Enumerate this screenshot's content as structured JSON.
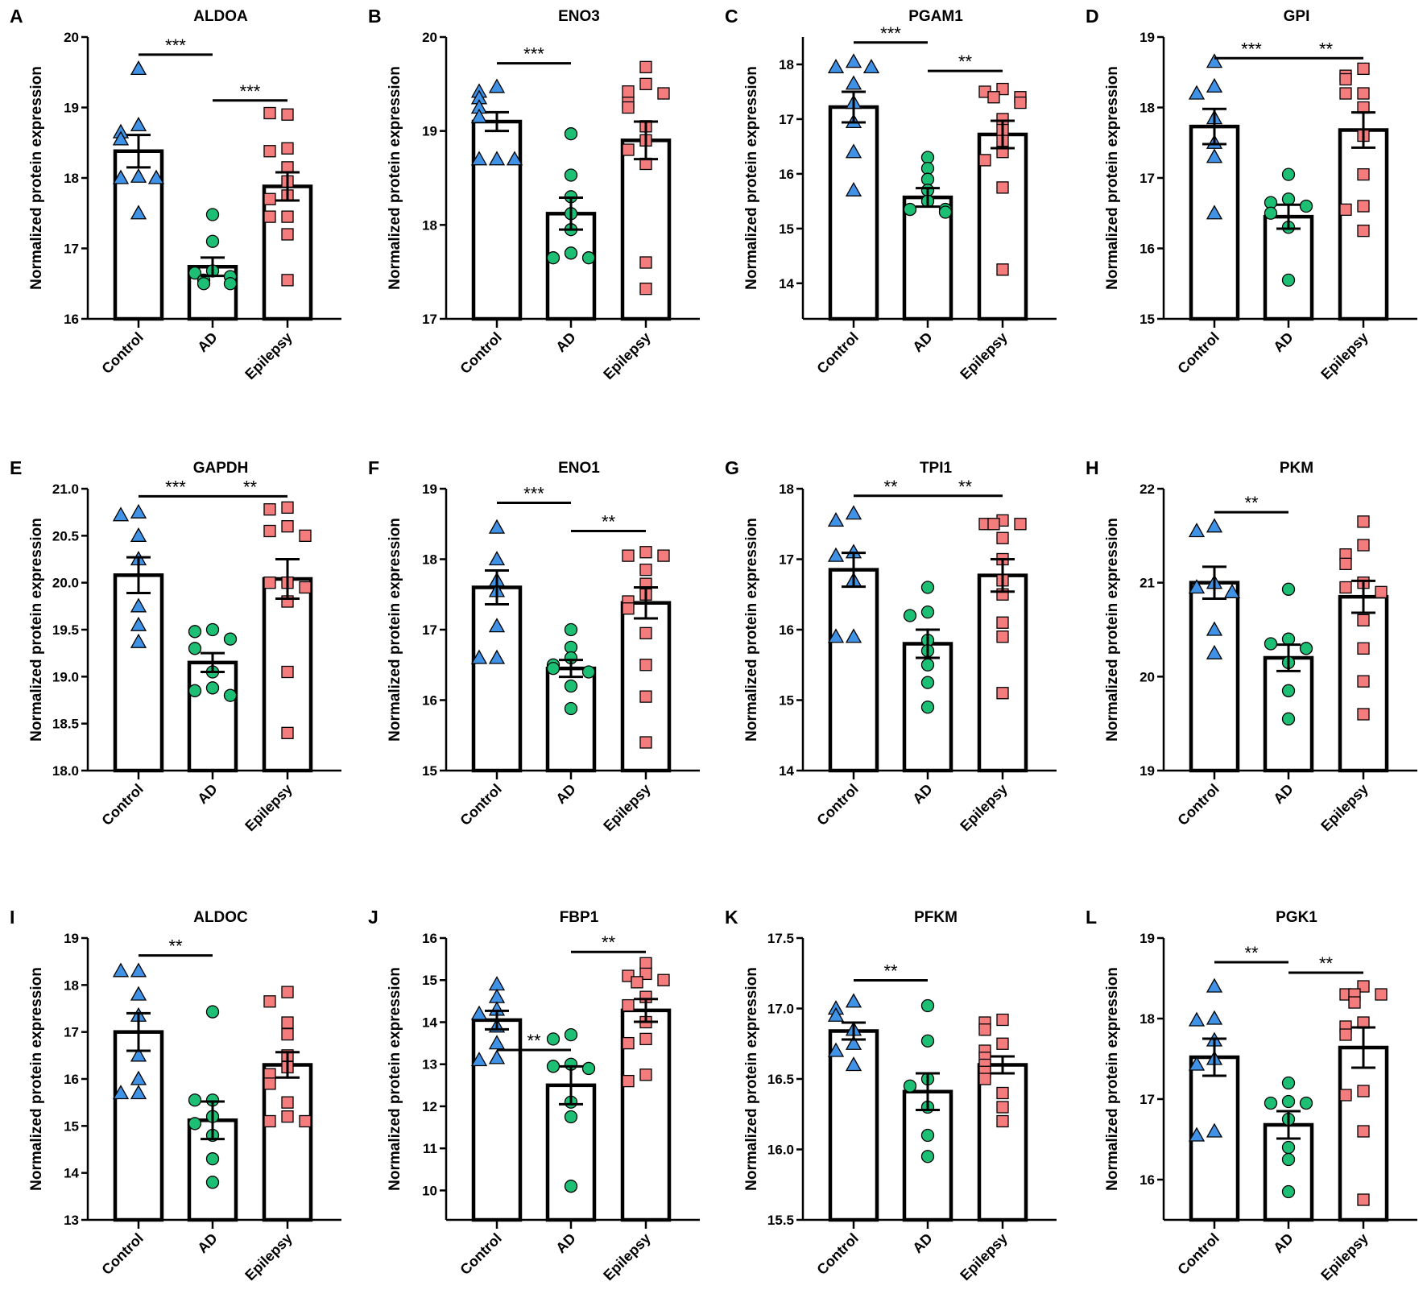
{
  "chart_data": [
    {
      "type": "bar",
      "letter": "A",
      "title": "ALDOA",
      "ylabel": "Normalized protein expression",
      "categories": [
        "Control",
        "AD",
        "Epilepsy"
      ],
      "ylim": [
        16,
        20
      ],
      "tick_labels": [
        "16",
        "17",
        "18",
        "19",
        "20"
      ],
      "groups": [
        {
          "mean": 18.38,
          "sem": 0.23,
          "points": [
            19.55,
            18.75,
            18.65,
            18.55,
            18.02,
            18.0,
            18.0,
            17.5
          ]
        },
        {
          "mean": 16.74,
          "sem": 0.13,
          "points": [
            17.48,
            17.1,
            16.68,
            16.65,
            16.6,
            16.55,
            16.5,
            16.5
          ]
        },
        {
          "mean": 17.88,
          "sem": 0.2,
          "points": [
            18.9,
            18.92,
            18.42,
            18.38,
            18.15,
            17.95,
            17.75,
            17.7,
            17.45,
            17.45,
            17.2,
            16.55
          ]
        }
      ],
      "significance": [
        {
          "from": 0,
          "to": 1,
          "label": "***",
          "y": 19.75
        },
        {
          "from": 1,
          "to": 2,
          "label": "***",
          "y": 19.1
        }
      ]
    },
    {
      "type": "bar",
      "letter": "B",
      "title": "ENO3",
      "ylabel": "Normalized protein expression",
      "categories": [
        "Control",
        "AD",
        "Epilepsy"
      ],
      "ylim": [
        17,
        20
      ],
      "tick_labels": [
        "17",
        "18",
        "19",
        "20"
      ],
      "groups": [
        {
          "mean": 19.1,
          "sem": 0.1,
          "points": [
            19.47,
            19.42,
            19.35,
            19.25,
            19.15,
            18.7,
            18.7,
            18.7
          ]
        },
        {
          "mean": 18.12,
          "sem": 0.17,
          "points": [
            18.97,
            18.53,
            18.3,
            18.12,
            17.95,
            17.7,
            17.65,
            17.65
          ]
        },
        {
          "mean": 18.9,
          "sem": 0.2,
          "points": [
            19.68,
            19.5,
            19.42,
            19.4,
            19.3,
            19.25,
            19.05,
            18.9,
            18.8,
            18.65,
            17.6,
            17.32
          ]
        }
      ],
      "significance": [
        {
          "from": 0,
          "to": 1,
          "label": "***",
          "y": 19.72
        }
      ]
    },
    {
      "type": "bar",
      "letter": "C",
      "title": "PGAM1",
      "ylabel": "Normalized protein expression",
      "categories": [
        "Control",
        "AD",
        "Epilepsy"
      ],
      "ylim": [
        13.35,
        18.5
      ],
      "tick_labels": [
        "14",
        "15",
        "16",
        "17",
        "18"
      ],
      "groups": [
        {
          "mean": 17.22,
          "sem": 0.28,
          "points": [
            18.05,
            17.95,
            17.95,
            17.65,
            17.3,
            16.95,
            16.4,
            15.7
          ]
        },
        {
          "mean": 15.57,
          "sem": 0.17,
          "points": [
            16.3,
            16.1,
            15.9,
            15.7,
            15.5,
            15.35,
            15.35,
            15.3
          ]
        },
        {
          "mean": 16.72,
          "sem": 0.25,
          "points": [
            17.55,
            17.5,
            17.4,
            17.4,
            17.3,
            17.0,
            16.8,
            16.6,
            16.4,
            16.25,
            15.75,
            14.25
          ]
        }
      ],
      "significance": [
        {
          "from": 0,
          "to": 1,
          "label": "***",
          "y": 18.4
        },
        {
          "from": 1,
          "to": 2,
          "label": "**",
          "y": 17.88
        }
      ]
    },
    {
      "type": "bar",
      "letter": "D",
      "title": "GPI",
      "ylabel": "Normalized protein expression",
      "categories": [
        "Control",
        "AD",
        "Epilepsy"
      ],
      "ylim": [
        15,
        19
      ],
      "tick_labels": [
        "15",
        "16",
        "17",
        "18",
        "19"
      ],
      "groups": [
        {
          "mean": 17.73,
          "sem": 0.25,
          "points": [
            18.65,
            18.3,
            18.2,
            17.85,
            17.5,
            17.3,
            16.5
          ]
        },
        {
          "mean": 16.45,
          "sem": 0.17,
          "points": [
            17.05,
            16.7,
            16.65,
            16.6,
            16.5,
            16.3,
            15.55
          ]
        },
        {
          "mean": 17.68,
          "sem": 0.25,
          "points": [
            18.55,
            18.45,
            18.4,
            18.2,
            18.2,
            18.0,
            17.6,
            17.05,
            16.6,
            16.55,
            16.25
          ]
        }
      ],
      "significance": [
        {
          "from": 0,
          "to": 1,
          "label": "***",
          "y": 18.7
        },
        {
          "from": 1,
          "to": 2,
          "label": "**",
          "y": 18.7
        }
      ]
    },
    {
      "type": "bar",
      "letter": "E",
      "title": "GAPDH",
      "ylabel": "Normalized protein expression",
      "categories": [
        "Control",
        "AD",
        "Epilepsy"
      ],
      "ylim": [
        18,
        21
      ],
      "tick_labels": [
        "18.0",
        "18.5",
        "19.0",
        "19.5",
        "20.0",
        "20.5",
        "21.0"
      ],
      "groups": [
        {
          "mean": 20.08,
          "sem": 0.19,
          "points": [
            20.75,
            20.72,
            20.5,
            20.25,
            19.75,
            19.55,
            19.37
          ]
        },
        {
          "mean": 19.15,
          "sem": 0.1,
          "points": [
            19.5,
            19.48,
            19.4,
            19.3,
            19.05,
            18.88,
            18.85,
            18.8
          ]
        },
        {
          "mean": 20.04,
          "sem": 0.21,
          "points": [
            20.8,
            20.78,
            20.6,
            20.55,
            20.5,
            20.0,
            20.0,
            19.95,
            19.8,
            19.05,
            18.4
          ]
        }
      ],
      "significance": [
        {
          "from": 0,
          "to": 1,
          "label": "***",
          "y": 20.92
        },
        {
          "from": 1,
          "to": 2,
          "label": "**",
          "y": 20.92
        }
      ]
    },
    {
      "type": "bar",
      "letter": "F",
      "title": "ENO1",
      "ylabel": "Normalized protein expression",
      "categories": [
        "Control",
        "AD",
        "Epilepsy"
      ],
      "ylim": [
        15,
        19
      ],
      "tick_labels": [
        "15",
        "16",
        "17",
        "18",
        "19"
      ],
      "groups": [
        {
          "mean": 17.6,
          "sem": 0.24,
          "points": [
            18.45,
            18.0,
            17.7,
            17.55,
            17.05,
            16.6,
            16.6
          ]
        },
        {
          "mean": 16.45,
          "sem": 0.12,
          "points": [
            17.0,
            16.75,
            16.6,
            16.5,
            16.45,
            16.4,
            16.2,
            15.88
          ]
        },
        {
          "mean": 17.38,
          "sem": 0.22,
          "points": [
            18.1,
            18.05,
            18.05,
            17.85,
            17.65,
            17.5,
            17.4,
            17.3,
            16.95,
            16.5,
            16.05,
            15.4
          ]
        }
      ],
      "significance": [
        {
          "from": 0,
          "to": 1,
          "label": "***",
          "y": 18.8
        },
        {
          "from": 1,
          "to": 2,
          "label": "**",
          "y": 18.4
        }
      ]
    },
    {
      "type": "bar",
      "letter": "G",
      "title": "TPI1",
      "ylabel": "Normalized protein expression",
      "categories": [
        "Control",
        "AD",
        "Epilepsy"
      ],
      "ylim": [
        14,
        18
      ],
      "tick_labels": [
        "14",
        "15",
        "16",
        "17",
        "18"
      ],
      "groups": [
        {
          "mean": 16.85,
          "sem": 0.24,
          "points": [
            17.65,
            17.55,
            17.1,
            17.05,
            16.7,
            15.9,
            15.9
          ]
        },
        {
          "mean": 15.8,
          "sem": 0.2,
          "points": [
            16.6,
            16.25,
            16.2,
            15.85,
            15.7,
            15.5,
            15.25,
            14.9
          ]
        },
        {
          "mean": 16.77,
          "sem": 0.23,
          "points": [
            17.55,
            17.5,
            17.5,
            17.5,
            17.3,
            17.0,
            16.7,
            16.5,
            16.1,
            15.9,
            15.1
          ]
        }
      ],
      "significance": [
        {
          "from": 0,
          "to": 1,
          "label": "**",
          "y": 17.9
        },
        {
          "from": 1,
          "to": 2,
          "label": "**",
          "y": 17.9
        }
      ]
    },
    {
      "type": "bar",
      "letter": "H",
      "title": "PKM",
      "ylabel": "Normalized protein expression",
      "categories": [
        "Control",
        "AD",
        "Epilepsy"
      ],
      "ylim": [
        19,
        22
      ],
      "tick_labels": [
        "19",
        "20",
        "21",
        "22"
      ],
      "groups": [
        {
          "mean": 21.0,
          "sem": 0.17,
          "points": [
            21.6,
            21.55,
            21.0,
            20.95,
            20.9,
            20.5,
            20.25
          ]
        },
        {
          "mean": 20.2,
          "sem": 0.14,
          "points": [
            20.93,
            20.4,
            20.35,
            20.3,
            20.15,
            19.85,
            19.55
          ]
        },
        {
          "mean": 20.85,
          "sem": 0.17,
          "points": [
            21.65,
            21.4,
            21.3,
            21.2,
            21.0,
            20.95,
            20.9,
            20.6,
            20.3,
            19.95,
            19.6
          ]
        }
      ],
      "significance": [
        {
          "from": 0,
          "to": 1,
          "label": "**",
          "y": 21.75
        }
      ]
    },
    {
      "type": "bar",
      "letter": "I",
      "title": "ALDOC",
      "ylabel": "Normalized protein expression",
      "categories": [
        "Control",
        "AD",
        "Epilepsy"
      ],
      "ylim": [
        13,
        19
      ],
      "tick_labels": [
        "13",
        "14",
        "15",
        "16",
        "17",
        "18",
        "19"
      ],
      "groups": [
        {
          "mean": 17.0,
          "sem": 0.4,
          "points": [
            18.3,
            18.3,
            17.8,
            17.35,
            16.5,
            16.0,
            15.7,
            15.7
          ]
        },
        {
          "mean": 15.12,
          "sem": 0.4,
          "points": [
            17.43,
            15.55,
            15.55,
            15.2,
            15.05,
            14.8,
            14.3,
            13.8
          ]
        },
        {
          "mean": 16.3,
          "sem": 0.27,
          "points": [
            17.85,
            17.65,
            17.2,
            16.95,
            16.5,
            16.25,
            16.1,
            15.9,
            15.5,
            15.2,
            15.1,
            15.1
          ]
        }
      ],
      "significance": [
        {
          "from": 0,
          "to": 1,
          "label": "**",
          "y": 18.63
        }
      ]
    },
    {
      "type": "bar",
      "letter": "J",
      "title": "FBP1",
      "ylabel": "Normalized protein expression",
      "categories": [
        "Control",
        "AD",
        "Epilepsy"
      ],
      "ylim": [
        9.3,
        16
      ],
      "tick_labels": [
        "10",
        "11",
        "12",
        "13",
        "14",
        "15",
        "16"
      ],
      "groups": [
        {
          "mean": 14.05,
          "sem": 0.22,
          "points": [
            14.9,
            14.6,
            14.3,
            14.2,
            13.9,
            13.5,
            13.15,
            13.1
          ]
        },
        {
          "mean": 12.5,
          "sem": 0.45,
          "points": [
            13.7,
            13.6,
            13.0,
            12.95,
            12.9,
            12.1,
            11.75,
            10.1
          ]
        },
        {
          "mean": 14.28,
          "sem": 0.27,
          "points": [
            15.4,
            15.15,
            15.1,
            15.0,
            14.95,
            14.6,
            14.4,
            14.0,
            13.6,
            13.5,
            12.75,
            12.6
          ]
        }
      ],
      "significance": [
        {
          "from": 0,
          "to": 1,
          "label": "**",
          "y": 13.34
        },
        {
          "from": 1,
          "to": 2,
          "label": "**",
          "y": 15.67
        }
      ]
    },
    {
      "type": "bar",
      "letter": "K",
      "title": "PFKM",
      "ylabel": "Normalized protein expression",
      "categories": [
        "Control",
        "AD",
        "Epilepsy"
      ],
      "ylim": [
        15.5,
        17.5
      ],
      "tick_labels": [
        "15.5",
        "16.0",
        "16.5",
        "17.0",
        "17.5"
      ],
      "groups": [
        {
          "mean": 16.84,
          "sem": 0.06,
          "points": [
            17.05,
            17.0,
            16.95,
            16.85,
            16.75,
            16.7,
            16.6
          ]
        },
        {
          "mean": 16.41,
          "sem": 0.13,
          "points": [
            17.02,
            16.77,
            16.5,
            16.45,
            16.3,
            16.1,
            15.95
          ]
        },
        {
          "mean": 16.6,
          "sem": 0.06,
          "points": [
            16.92,
            16.9,
            16.85,
            16.75,
            16.7,
            16.65,
            16.6,
            16.55,
            16.5,
            16.4,
            16.3,
            16.2
          ]
        }
      ],
      "significance": [
        {
          "from": 0,
          "to": 1,
          "label": "**",
          "y": 17.2
        }
      ]
    },
    {
      "type": "bar",
      "letter": "L",
      "title": "PGK1",
      "ylabel": "Normalized protein expression",
      "categories": [
        "Control",
        "AD",
        "Epilepsy"
      ],
      "ylim": [
        15.5,
        19
      ],
      "tick_labels": [
        "16",
        "17",
        "18",
        "19"
      ],
      "groups": [
        {
          "mean": 17.52,
          "sem": 0.23,
          "points": [
            18.4,
            18.0,
            17.98,
            17.73,
            17.5,
            17.43,
            16.6,
            16.55
          ]
        },
        {
          "mean": 16.68,
          "sem": 0.17,
          "points": [
            17.2,
            16.97,
            16.95,
            16.95,
            16.75,
            16.4,
            16.25,
            15.85
          ]
        },
        {
          "mean": 17.64,
          "sem": 0.25,
          "points": [
            18.4,
            18.3,
            18.3,
            18.3,
            18.2,
            17.95,
            17.9,
            17.8,
            17.1,
            17.05,
            16.6,
            15.75
          ]
        }
      ],
      "significance": [
        {
          "from": 0,
          "to": 1,
          "label": "**",
          "y": 18.7
        },
        {
          "from": 1,
          "to": 2,
          "label": "**",
          "y": 18.57
        }
      ]
    }
  ],
  "colors": {
    "Control": "#3f92e6",
    "AD": "#1dbf74",
    "Epilepsy": "#f47c7c",
    "outline": "#000000"
  },
  "markers": {
    "Control": "triangle",
    "AD": "circle",
    "Epilepsy": "square"
  }
}
